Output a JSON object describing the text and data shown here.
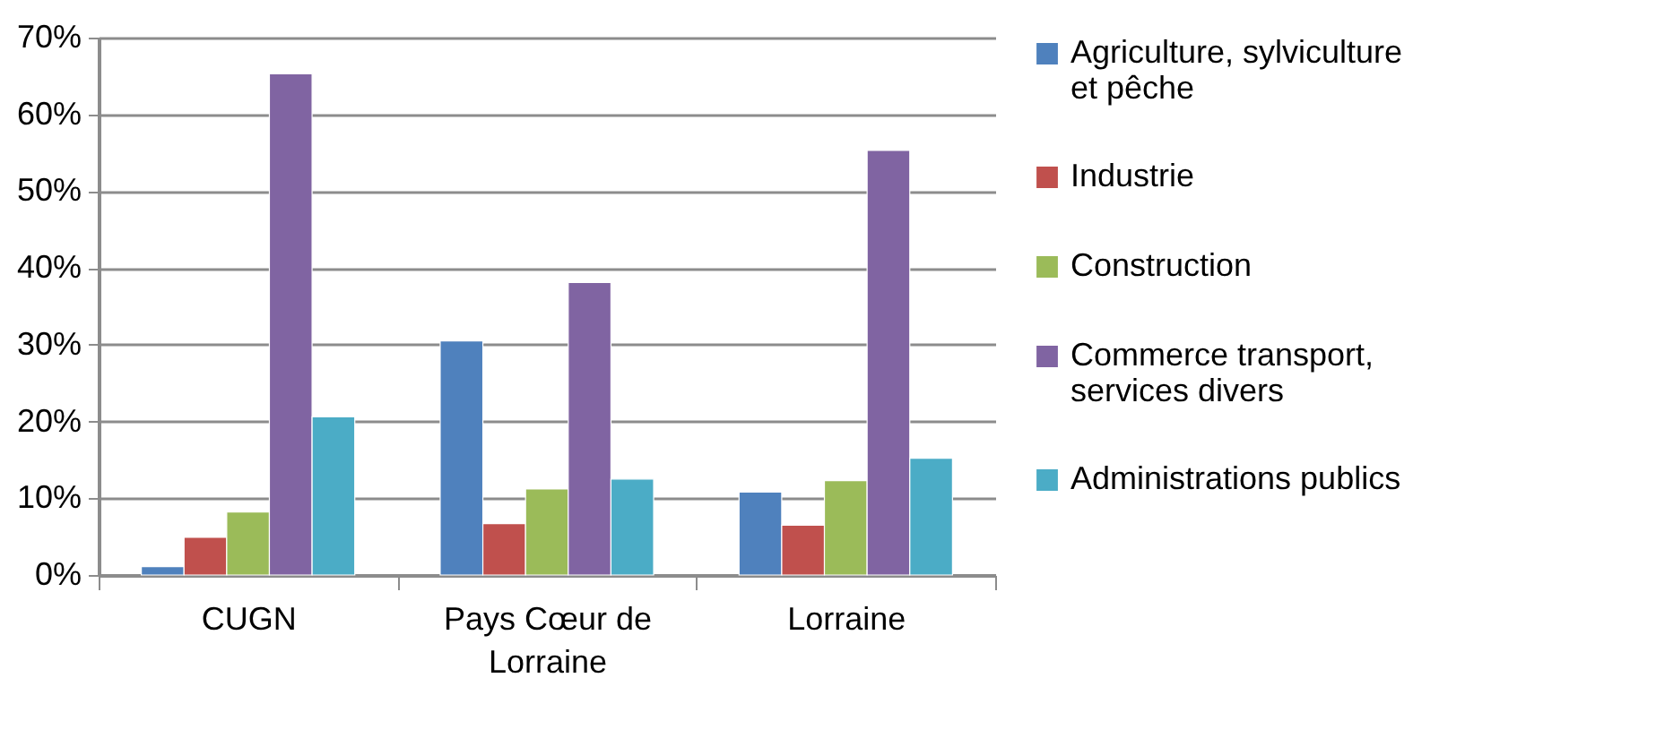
{
  "chart_data": {
    "type": "bar",
    "categories": [
      "CUGN",
      "Pays Cœur de Lorraine",
      "Lorraine"
    ],
    "series": [
      {
        "name": "Agriculture, sylviculture et pêche",
        "color": "#4f81bd",
        "values": [
          1.1,
          30.5,
          10.8
        ]
      },
      {
        "name": "Industrie",
        "color": "#c0504d",
        "values": [
          4.9,
          6.7,
          6.5
        ]
      },
      {
        "name": "Construction",
        "color": "#9bbb59",
        "values": [
          8.2,
          11.2,
          12.3
        ]
      },
      {
        "name": "Commerce transport, services divers",
        "color": "#8064a2",
        "values": [
          65.3,
          38.1,
          55.3
        ]
      },
      {
        "name": "Administrations publics",
        "color": "#4bacc6",
        "values": [
          20.6,
          12.5,
          15.2
        ]
      }
    ],
    "ylim": [
      0,
      70
    ],
    "yticks": [
      {
        "value": 0,
        "label": "0%"
      },
      {
        "value": 10,
        "label": "10%"
      },
      {
        "value": 20,
        "label": "20%"
      },
      {
        "value": 30,
        "label": "30%"
      },
      {
        "value": 40,
        "label": "40%"
      },
      {
        "value": 50,
        "label": "50%"
      },
      {
        "value": 60,
        "label": "60%"
      },
      {
        "value": 70,
        "label": "70%"
      }
    ],
    "grid": "y",
    "legend": "right"
  }
}
